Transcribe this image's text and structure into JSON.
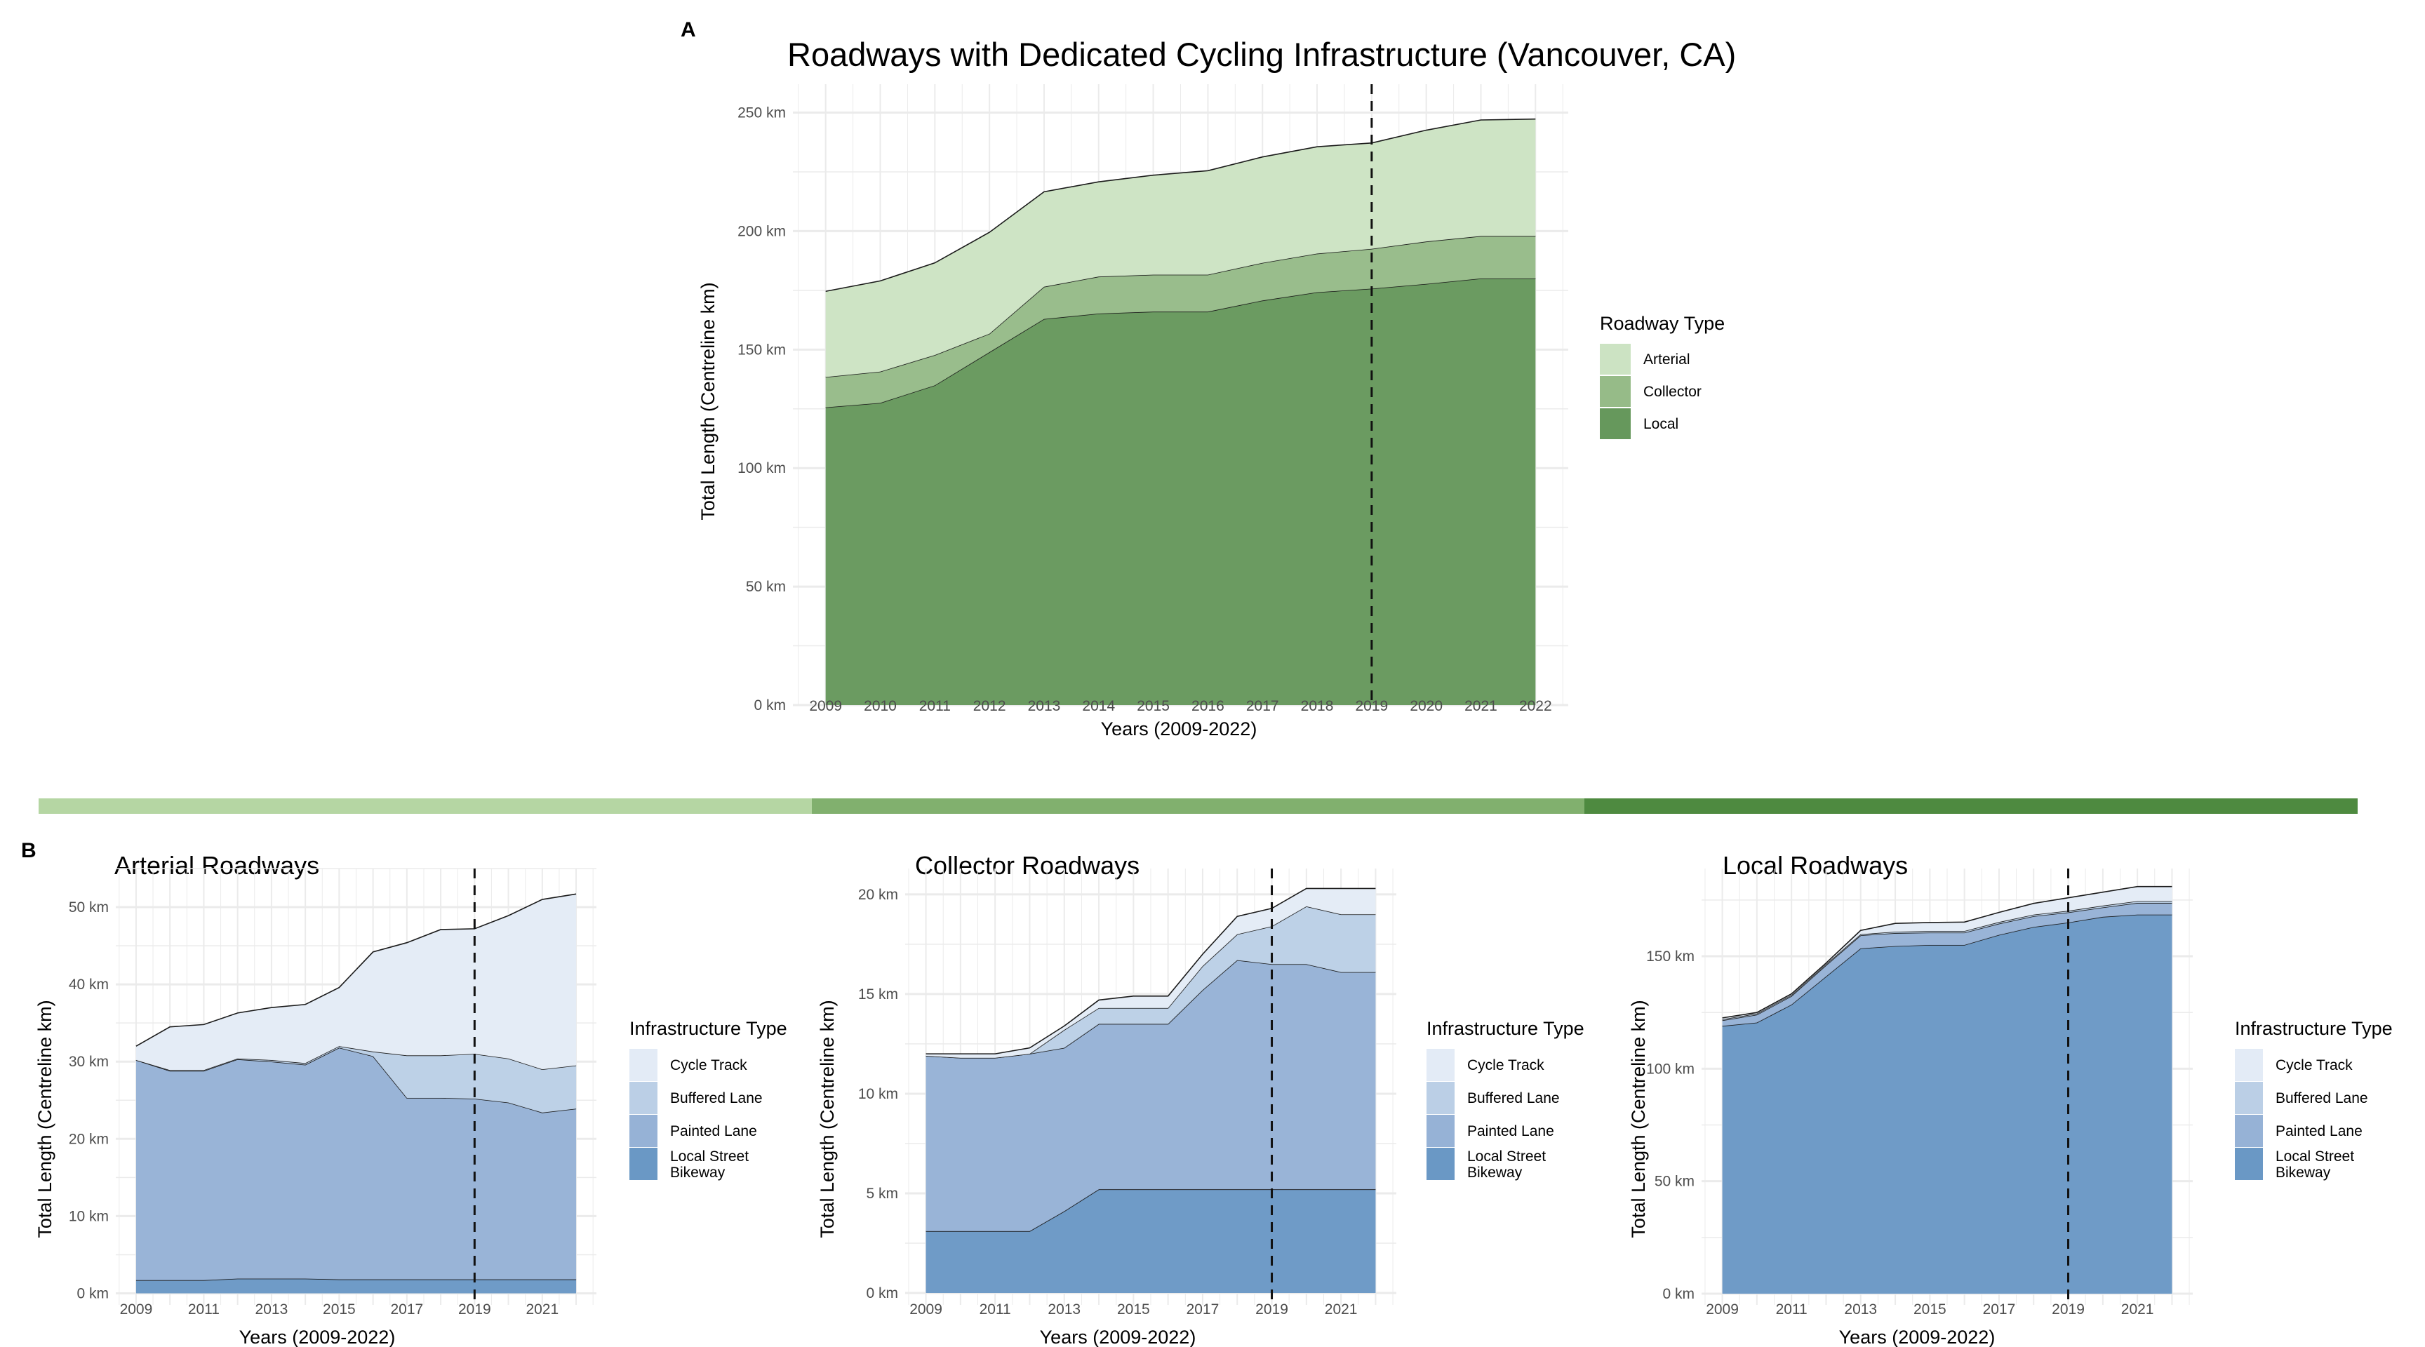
{
  "panel_labels": {
    "a": "A",
    "b": "B"
  },
  "divider": {
    "segments": [
      {
        "name": "arterial",
        "color": "#b5d6a3"
      },
      {
        "name": "collector",
        "color": "#81b06e"
      },
      {
        "name": "local",
        "color": "#4e8a40"
      }
    ]
  },
  "chart_data": [
    {
      "id": "overview",
      "type": "area",
      "stacked": true,
      "title": "Roadways with Dedicated Cycling Infrastructure (Vancouver, CA)",
      "xlabel": "Years (2009-2022)",
      "ylabel": "Total Length (Centreline km)",
      "x": [
        2009,
        2010,
        2011,
        2012,
        2013,
        2014,
        2015,
        2016,
        2017,
        2018,
        2019,
        2020,
        2021,
        2022
      ],
      "x_tick_labels": [
        "2009",
        "2010",
        "2011",
        "2012",
        "2013",
        "2014",
        "2015",
        "2016",
        "2017",
        "2018",
        "2019",
        "2020",
        "2021",
        "2022"
      ],
      "ylim": [
        0,
        262
      ],
      "y_ticks": [
        0,
        50,
        100,
        150,
        200,
        250
      ],
      "y_tick_labels": [
        "0 km",
        "50 km",
        "100 km",
        "150 km",
        "200 km",
        "250 km"
      ],
      "grid": true,
      "reference_line": {
        "x": 2019,
        "style": "dashed"
      },
      "legend": {
        "title": "Roadway Type",
        "position": "right"
      },
      "series": [
        {
          "name": "Local",
          "color": "#66985c",
          "values": [
            125.6,
            127.5,
            134.9,
            148.9,
            162.9,
            165.2,
            166.0,
            166.0,
            170.7,
            174.2,
            175.7,
            177.7,
            180.0,
            180.0
          ]
        },
        {
          "name": "Collector",
          "color": "#96bb88",
          "values": [
            12.8,
            13.2,
            12.8,
            7.8,
            13.6,
            15.6,
            15.6,
            15.6,
            15.9,
            16.3,
            16.8,
            17.9,
            17.9,
            17.9
          ]
        },
        {
          "name": "Arterial",
          "color": "#cce3c3",
          "values": [
            36.2,
            38.3,
            38.9,
            42.8,
            40.1,
            40.0,
            42.0,
            43.9,
            44.7,
            45.1,
            44.7,
            47.0,
            49.0,
            49.4
          ]
        }
      ],
      "legend_order": [
        "Arterial",
        "Collector",
        "Local"
      ]
    },
    {
      "id": "arterial",
      "type": "area",
      "stacked": true,
      "title": "Arterial Roadways",
      "xlabel": "Years (2009-2022)",
      "ylabel": "Total Length (Centreline km)",
      "x": [
        2009,
        2010,
        2011,
        2012,
        2013,
        2014,
        2015,
        2016,
        2017,
        2018,
        2019,
        2020,
        2021,
        2022
      ],
      "x_ticks": [
        2009,
        2011,
        2013,
        2015,
        2017,
        2019,
        2021
      ],
      "x_tick_labels": [
        "2009",
        "2011",
        "2013",
        "2015",
        "2017",
        "2019",
        "2021"
      ],
      "ylim": [
        -1.5,
        55
      ],
      "y_ticks": [
        0,
        10,
        20,
        30,
        40,
        50
      ],
      "y_tick_labels": [
        "0 km",
        "10 km",
        "20 km",
        "30 km",
        "40 km",
        "50 km"
      ],
      "grid": true,
      "reference_line": {
        "x": 2019,
        "style": "dashed"
      },
      "legend": {
        "title": "Infrastructure Type",
        "position": "right"
      },
      "series": [
        {
          "name": "Local Street Bikeway",
          "color": "#6a98c5",
          "values": [
            1.7,
            1.7,
            1.7,
            1.9,
            1.9,
            1.9,
            1.8,
            1.8,
            1.8,
            1.8,
            1.8,
            1.8,
            1.8,
            1.8
          ]
        },
        {
          "name": "Painted Lane",
          "color": "#96b2d6",
          "values": [
            28.5,
            27.1,
            27.1,
            28.4,
            28.1,
            27.7,
            30.0,
            28.9,
            23.5,
            23.5,
            23.4,
            22.9,
            21.6,
            22.1
          ]
        },
        {
          "name": "Buffered Lane",
          "color": "#bbcfe6",
          "values": [
            0.0,
            0.1,
            0.1,
            0.1,
            0.2,
            0.2,
            0.2,
            0.6,
            5.5,
            5.5,
            5.8,
            5.7,
            5.6,
            5.6
          ]
        },
        {
          "name": "Cycle Track",
          "color": "#e3ebf6",
          "values": [
            1.8,
            5.6,
            5.9,
            5.9,
            6.8,
            7.6,
            7.6,
            12.9,
            14.6,
            16.3,
            16.2,
            18.5,
            22.0,
            22.2
          ]
        }
      ],
      "legend_labels": [
        "Cycle Track",
        "Buffered Lane",
        "Painted Lane",
        "Local Street\nBikeway"
      ]
    },
    {
      "id": "collector",
      "type": "area",
      "stacked": true,
      "title": "Collector Roadways",
      "xlabel": "Years (2009-2022)",
      "ylabel": "Total Length (Centreline km)",
      "x": [
        2009,
        2010,
        2011,
        2012,
        2013,
        2014,
        2015,
        2016,
        2017,
        2018,
        2019,
        2020,
        2021,
        2022
      ],
      "x_ticks": [
        2009,
        2011,
        2013,
        2015,
        2017,
        2019,
        2021
      ],
      "x_tick_labels": [
        "2009",
        "2011",
        "2013",
        "2015",
        "2017",
        "2019",
        "2021"
      ],
      "ylim": [
        -0.6,
        21.3
      ],
      "y_ticks": [
        0,
        5,
        10,
        15,
        20
      ],
      "y_tick_labels": [
        "0 km",
        "5 km",
        "10 km",
        "15 km",
        "20 km"
      ],
      "grid": true,
      "reference_line": {
        "x": 2019,
        "style": "dashed"
      },
      "legend": {
        "title": "Infrastructure Type",
        "position": "right"
      },
      "series": [
        {
          "name": "Local Street Bikeway",
          "color": "#6a98c5",
          "values": [
            3.1,
            3.1,
            3.1,
            3.1,
            4.1,
            5.2,
            5.2,
            5.2,
            5.2,
            5.2,
            5.2,
            5.2,
            5.2,
            5.2
          ]
        },
        {
          "name": "Painted Lane",
          "color": "#96b2d6",
          "values": [
            8.8,
            8.7,
            8.7,
            8.9,
            8.2,
            8.3,
            8.3,
            8.3,
            10.0,
            11.5,
            11.3,
            11.3,
            10.9,
            10.9
          ]
        },
        {
          "name": "Buffered Lane",
          "color": "#bbcfe6",
          "values": [
            0.0,
            0.0,
            0.0,
            0.0,
            0.9,
            0.8,
            0.8,
            0.8,
            1.2,
            1.3,
            1.9,
            2.9,
            2.9,
            2.9
          ]
        },
        {
          "name": "Cycle Track",
          "color": "#e3ebf6",
          "values": [
            0.1,
            0.2,
            0.2,
            0.3,
            0.2,
            0.4,
            0.6,
            0.6,
            0.6,
            0.9,
            0.9,
            0.9,
            1.3,
            1.3
          ]
        }
      ],
      "legend_labels": [
        "Cycle Track",
        "Buffered Lane",
        "Painted Lane",
        "Local Street\nBikeway"
      ]
    },
    {
      "id": "local",
      "type": "area",
      "stacked": true,
      "title": "Local Roadways",
      "xlabel": "Years (2009-2022)",
      "ylabel": "Total Length (Centreline km)",
      "x": [
        2009,
        2010,
        2011,
        2012,
        2013,
        2014,
        2015,
        2016,
        2017,
        2018,
        2019,
        2020,
        2021,
        2022
      ],
      "x_ticks": [
        2009,
        2011,
        2013,
        2015,
        2017,
        2019,
        2021
      ],
      "x_tick_labels": [
        "2009",
        "2011",
        "2013",
        "2015",
        "2017",
        "2019",
        "2021"
      ],
      "ylim": [
        -5,
        189
      ],
      "y_ticks": [
        0,
        50,
        100,
        150
      ],
      "y_tick_labels": [
        "0 km",
        "50 km",
        "100 km",
        "150 km"
      ],
      "grid": true,
      "reference_line": {
        "x": 2019,
        "style": "dashed"
      },
      "legend": {
        "title": "Infrastructure Type",
        "position": "right"
      },
      "series": [
        {
          "name": "Local Street Bikeway",
          "color": "#6a98c5",
          "values": [
            119.0,
            120.5,
            128.5,
            141.0,
            153.5,
            154.5,
            155.0,
            155.0,
            159.5,
            163.0,
            165.0,
            167.5,
            168.5,
            168.5
          ]
        },
        {
          "name": "Painted Lane",
          "color": "#96b2d6",
          "values": [
            2.5,
            3.5,
            3.8,
            5.0,
            5.8,
            5.8,
            5.5,
            5.5,
            5.0,
            4.8,
            4.5,
            4.2,
            5.2,
            5.2
          ]
        },
        {
          "name": "Buffered Lane",
          "color": "#bbcfe6",
          "values": [
            0.5,
            0.5,
            0.5,
            0.5,
            0.5,
            0.6,
            0.7,
            0.7,
            0.7,
            0.7,
            0.7,
            0.8,
            0.8,
            0.8
          ]
        },
        {
          "name": "Cycle Track",
          "color": "#e3ebf6",
          "values": [
            0.6,
            0.5,
            0.5,
            0.5,
            1.7,
            3.7,
            3.8,
            4.0,
            4.3,
            5.0,
            5.8,
            6.0,
            6.5,
            6.5
          ]
        }
      ],
      "legend_labels": [
        "Cycle Track",
        "Buffered Lane",
        "Painted Lane",
        "Local Street\nBikeway"
      ]
    }
  ]
}
